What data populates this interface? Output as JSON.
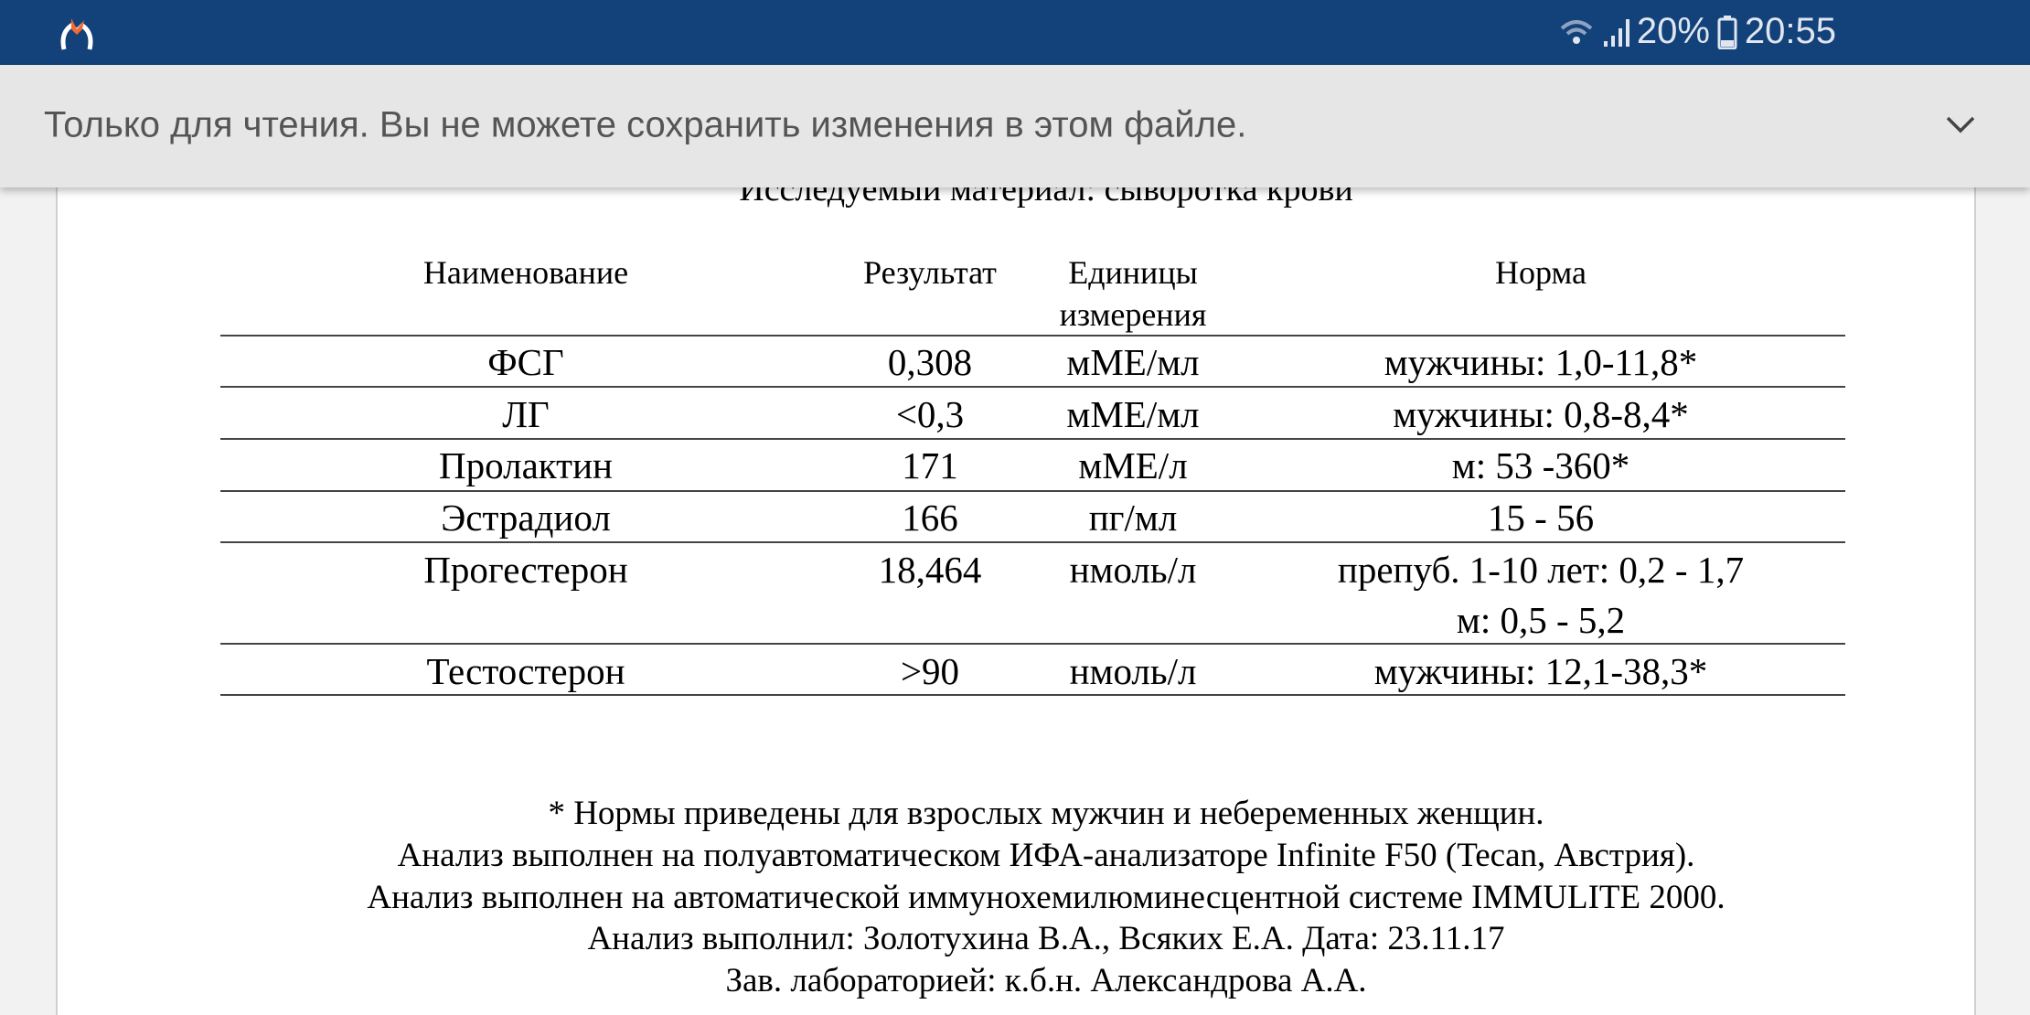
{
  "status_bar": {
    "battery": "20%",
    "time": "20:55",
    "icons": [
      "wifi-icon",
      "signal-icon",
      "battery-icon"
    ]
  },
  "banner": {
    "text": "Только для чтения. Вы не можете сохранить изменения в этом файле.",
    "chevron": "chevron-down-icon"
  },
  "document": {
    "material": "Исследуемый материал: сыворотка крови",
    "headers": {
      "name": "Наименование",
      "result": "Результат",
      "units_1": "Единицы",
      "units_2": "измерения",
      "norm": "Норма"
    },
    "rows": [
      {
        "name": "ФСГ",
        "result": "0,308",
        "unit": "мМЕ/мл",
        "norm": "мужчины: 1,0-11,8*"
      },
      {
        "name": "ЛГ",
        "result": "<0,3",
        "unit": "мМЕ/мл",
        "norm": "мужчины: 0,8-8,4*"
      },
      {
        "name": "Пролактин",
        "result": "171",
        "unit": "мМЕ/л",
        "norm": "м: 53 -360*"
      },
      {
        "name": "Эстрадиол",
        "result": "166",
        "unit": "пг/мл",
        "norm": "15 - 56"
      },
      {
        "name": "Прогестерон",
        "result": "18,464",
        "unit": "нмоль/л",
        "norm": "препуб. 1-10 лет: 0,2 - 1,7",
        "norm2": "м: 0,5 - 5,2"
      },
      {
        "name": "Тестостерон",
        "result": ">90",
        "unit": "нмоль/л",
        "norm": "мужчины: 12,1-38,3*"
      }
    ],
    "footnotes": [
      "* Нормы приведены для взрослых мужчин и небеременных женщин.",
      "Анализ выполнен на  полуавтоматическом ИФА-анализаторе Infinite F50 (Tecan, Австрия).",
      "Анализ выполнен на автоматической иммунохемилюминесцентной системе IMMULITE 2000.",
      "Анализ выполнил: Золотухина В.А., Всяких Е.А.  Дата: 23.11.17",
      "Зав. лабораторией: к.б.н. Александрова А.А."
    ]
  }
}
